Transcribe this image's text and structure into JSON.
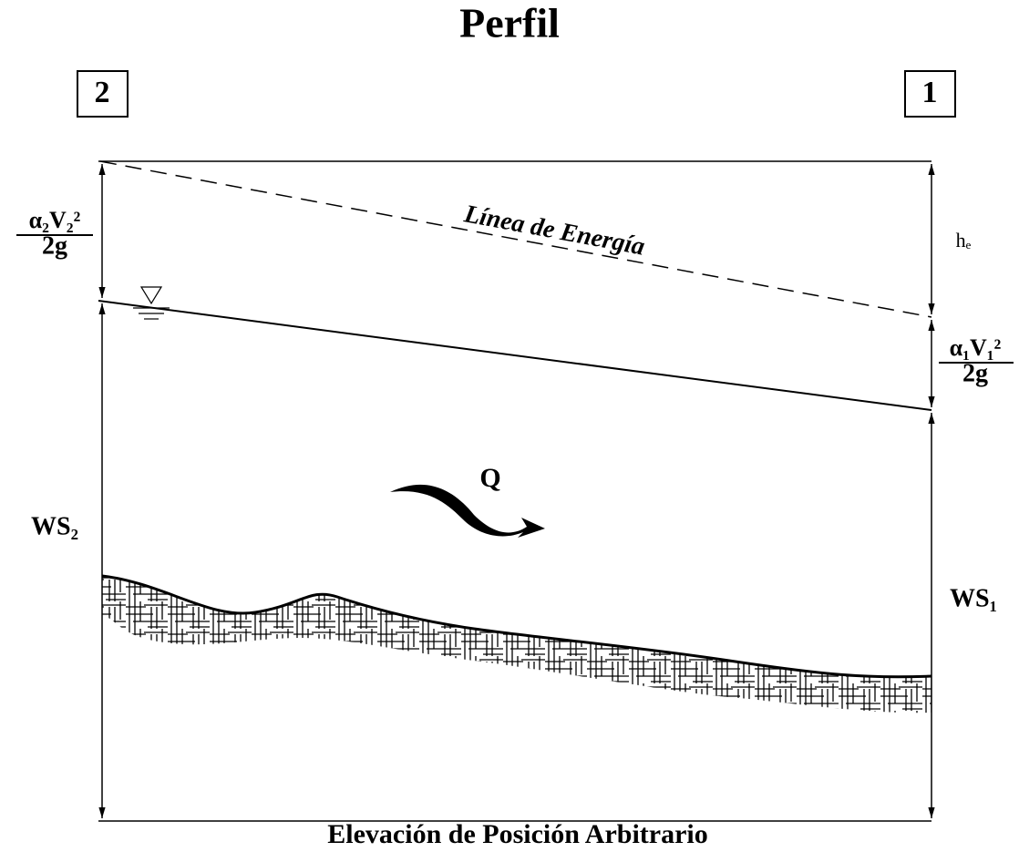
{
  "title": "Perfil",
  "sections": {
    "upstream": "2",
    "downstream": "1"
  },
  "energy_line": "Línea de Energía",
  "velocity_head_2": {
    "numerator": "α₂V₂²",
    "denominator": "2g"
  },
  "velocity_head_1": {
    "numerator": "α₁V₁²",
    "denominator": "2g"
  },
  "head_loss": "hₑ",
  "ws_2": "WS₂",
  "ws_1": "WS₁",
  "flow": "Q",
  "datum": "Elevación de Posición Arbitrario"
}
